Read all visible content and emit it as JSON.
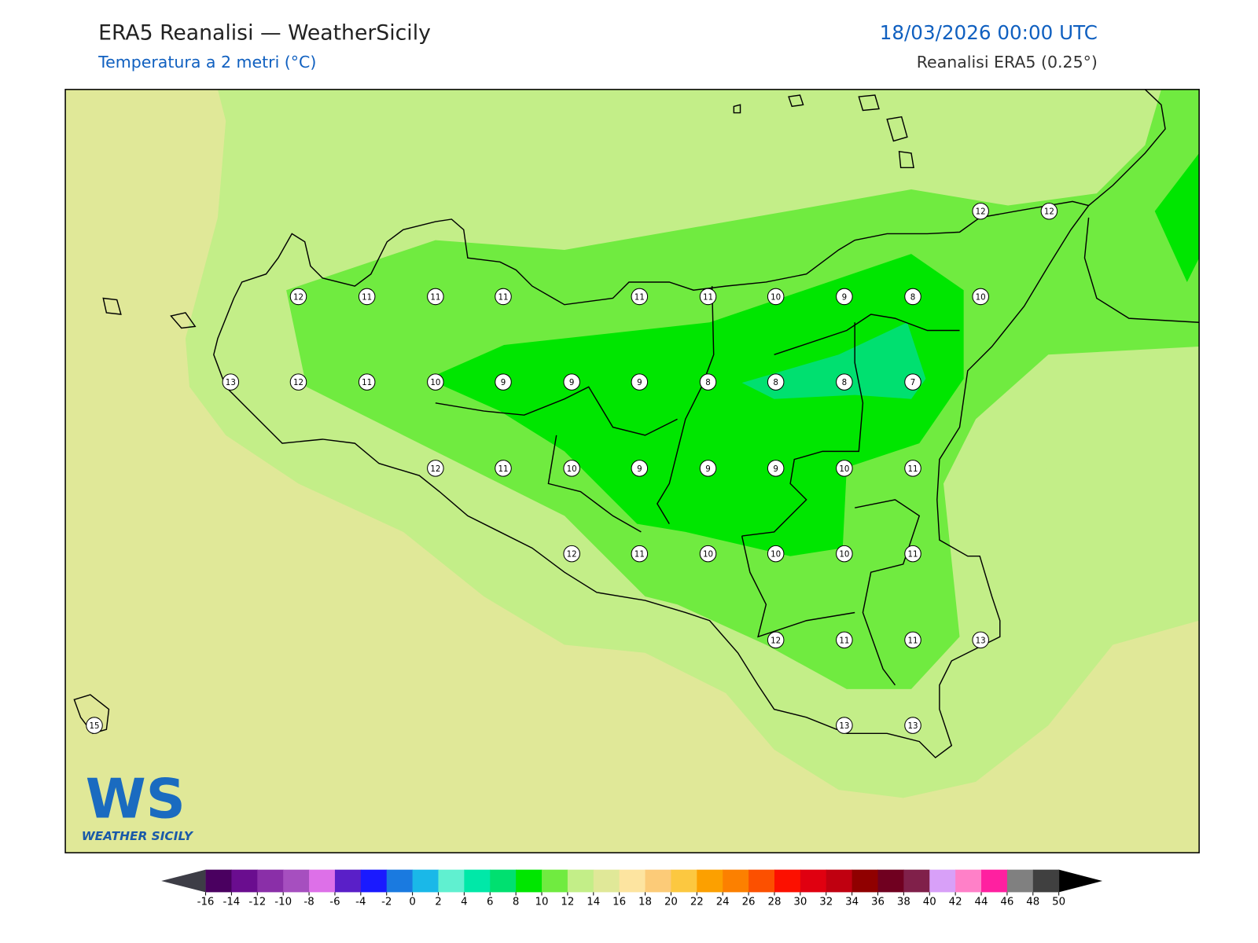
{
  "header": {
    "title": "ERA5 Reanalisi — WeatherSicily",
    "subtitle": "Temperatura a 2 metri (°C)",
    "date": "18/03/2026 00:00 UTC",
    "source": "Reanalisi ERA5 (0.25°)"
  },
  "map": {
    "stations": [
      12,
      12,
      12,
      11,
      11,
      11,
      11,
      11,
      10,
      9,
      8,
      10,
      13,
      12,
      11,
      10,
      9,
      9,
      9,
      8,
      8,
      8,
      7,
      12,
      11,
      10,
      9,
      9,
      9,
      10,
      11,
      12,
      11,
      10,
      10,
      10,
      11,
      12,
      11,
      11,
      13,
      15,
      13,
      13
    ]
  },
  "colorbar": {
    "ticks": [
      -16,
      -14,
      -12,
      -10,
      -8,
      -6,
      -4,
      -2,
      0,
      2,
      4,
      6,
      8,
      10,
      12,
      14,
      16,
      18,
      20,
      22,
      24,
      26,
      28,
      30,
      32,
      34,
      36,
      38,
      40,
      42,
      44,
      46,
      48,
      50
    ],
    "colors": [
      "#4a0060",
      "#6a0d8f",
      "#8a2fa8",
      "#a64fbf",
      "#dd70e8",
      "#5a1fc8",
      "#1a1aff",
      "#1a7ae0",
      "#1ab8e8",
      "#60f0d0",
      "#00e8a8",
      "#00e070",
      "#00e600",
      "#70eb40",
      "#c3ee88",
      "#e0e898",
      "#fde4a0",
      "#fccb78",
      "#fcc840",
      "#fca000",
      "#fc8000",
      "#fc5000",
      "#fc1000",
      "#e00010",
      "#c00010",
      "#900000",
      "#700020",
      "#80204a",
      "#d8a0f8",
      "#ff80c8",
      "#ff20a0",
      "#808080",
      "#404040"
    ],
    "under_color": "#3d3d46",
    "over_color": "#000000"
  },
  "logo": {
    "mark": "WS",
    "text": "WEATHER SICILY"
  }
}
